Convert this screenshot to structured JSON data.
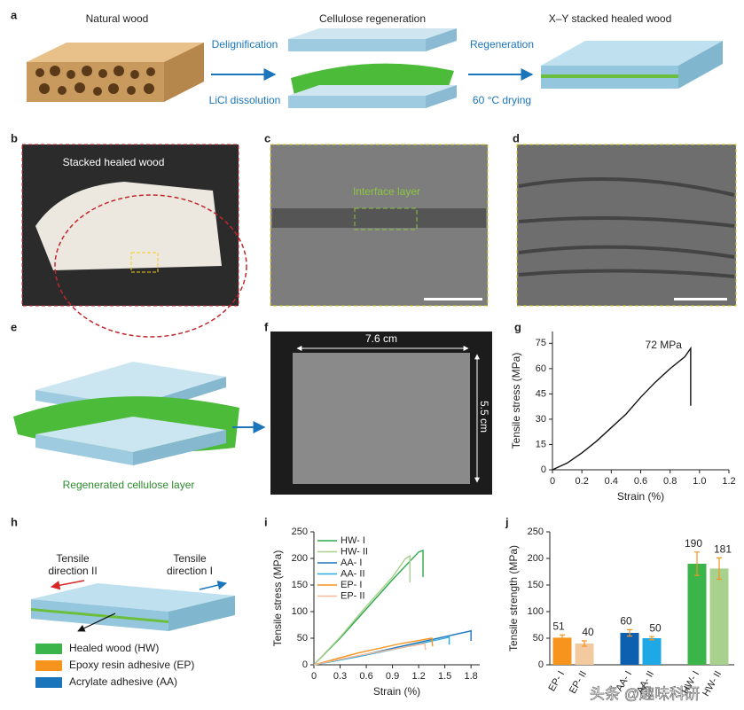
{
  "panels": {
    "a": {
      "label": "a",
      "titles": [
        "Natural wood",
        "Cellulose regeneration",
        "X–Y stacked healed wood"
      ],
      "arrow_texts": [
        "Delignification",
        "LiCl dissolution",
        "Regeneration",
        "60 °C drying"
      ]
    },
    "b": {
      "label": "b",
      "caption": "Stacked healed wood"
    },
    "c": {
      "label": "c",
      "caption": "Interface layer"
    },
    "d": {
      "label": "d"
    },
    "e": {
      "label": "e",
      "caption": "Regenerated cellulose layer"
    },
    "f": {
      "label": "f",
      "width": "7.6 cm",
      "height": "5.5 cm"
    },
    "g": {
      "label": "g"
    },
    "h": {
      "label": "h",
      "direction_II": [
        "Tensile",
        "direction II"
      ],
      "direction_I": [
        "Tensile",
        "direction I"
      ],
      "legend": [
        {
          "name": "Healed wood (HW)",
          "color": "#3bb54a"
        },
        {
          "name": "Epoxy resin adhesive (EP)",
          "color": "#f7941d"
        },
        {
          "name": "Acrylate adhesive (AA)",
          "color": "#1b75bb"
        }
      ]
    },
    "i": {
      "label": "i"
    },
    "j": {
      "label": "j"
    }
  },
  "watermark": "头条 @趣味科研",
  "chart_data": [
    {
      "type": "line",
      "xlabel": "Strain (%)",
      "ylabel": "Tensile stress (MPa)",
      "annotation": "72 MPa",
      "x": [
        0,
        0.1,
        0.2,
        0.3,
        0.4,
        0.5,
        0.6,
        0.7,
        0.8,
        0.9,
        0.94,
        0.94
      ],
      "series": [
        {
          "color": "#111111",
          "values": [
            0,
            4,
            10,
            17,
            25,
            33,
            43,
            52,
            60,
            67,
            72,
            38
          ]
        }
      ],
      "xlim": [
        0,
        1.2
      ],
      "ylim": [
        0,
        82
      ],
      "xticks": [
        0,
        0.2,
        0.4,
        0.6,
        0.8,
        {
          "value": 1,
          "label": "1.0"
        },
        1.2
      ],
      "yticks": [
        0,
        15,
        30,
        45,
        60,
        75
      ]
    },
    {
      "type": "line",
      "xlabel": "Strain (%)",
      "ylabel": "Tensile stress (MPa)",
      "legend": "upper left",
      "series": [
        {
          "name": "HW- I",
          "color": "#2ca84a",
          "x": [
            0,
            0.3,
            0.6,
            0.9,
            1.2,
            1.25,
            1.25
          ],
          "values": [
            0,
            50,
            105,
            160,
            212,
            215,
            165
          ]
        },
        {
          "name": "HW- II",
          "color": "#a8d08d",
          "x": [
            0,
            0.3,
            0.6,
            0.9,
            1.05,
            1.1,
            1.1
          ],
          "values": [
            0,
            52,
            110,
            165,
            200,
            205,
            155
          ]
        },
        {
          "name": "AA- I",
          "color": "#1b75bb",
          "x": [
            0,
            0.6,
            1.2,
            1.78,
            1.8,
            1.8
          ],
          "values": [
            0,
            20,
            42,
            63,
            64,
            45
          ]
        },
        {
          "name": "AA- II",
          "color": "#29abe2",
          "x": [
            0,
            0.5,
            1.0,
            1.5,
            1.55,
            1.55
          ],
          "values": [
            0,
            15,
            32,
            50,
            52,
            38
          ]
        },
        {
          "name": "EP- I",
          "color": "#f7941d",
          "x": [
            0,
            0.5,
            1.0,
            1.35,
            1.36
          ],
          "values": [
            0,
            22,
            40,
            50,
            35
          ]
        },
        {
          "name": "EP- II",
          "color": "#f5b99a",
          "x": [
            0,
            0.5,
            1.0,
            1.27,
            1.28
          ],
          "values": [
            0,
            17,
            32,
            40,
            28
          ]
        }
      ],
      "xlim": [
        0,
        1.9
      ],
      "ylim": [
        0,
        250
      ],
      "xticks": [
        0,
        0.3,
        0.6,
        0.9,
        1.2,
        1.5,
        1.8
      ],
      "yticks": [
        0,
        50,
        100,
        150,
        200,
        250
      ]
    },
    {
      "type": "bar",
      "ylabel": "Tensile strength (MPa)",
      "categories": [
        "EP- I",
        "EP- II",
        "AA- I",
        "AA- II",
        "HW- I",
        "HW- II"
      ],
      "values": [
        51,
        40,
        60,
        50,
        190,
        181
      ],
      "errors": [
        5,
        5,
        6,
        3,
        22,
        20
      ],
      "colors": [
        "#f7941d",
        "#f3c9a0",
        "#0d5fb0",
        "#1fa8e6",
        "#3bb54a",
        "#a9d18e"
      ],
      "error_color": "#f7941d",
      "ylim": [
        0,
        250
      ],
      "yticks": [
        0,
        50,
        100,
        150,
        200,
        250
      ]
    }
  ]
}
